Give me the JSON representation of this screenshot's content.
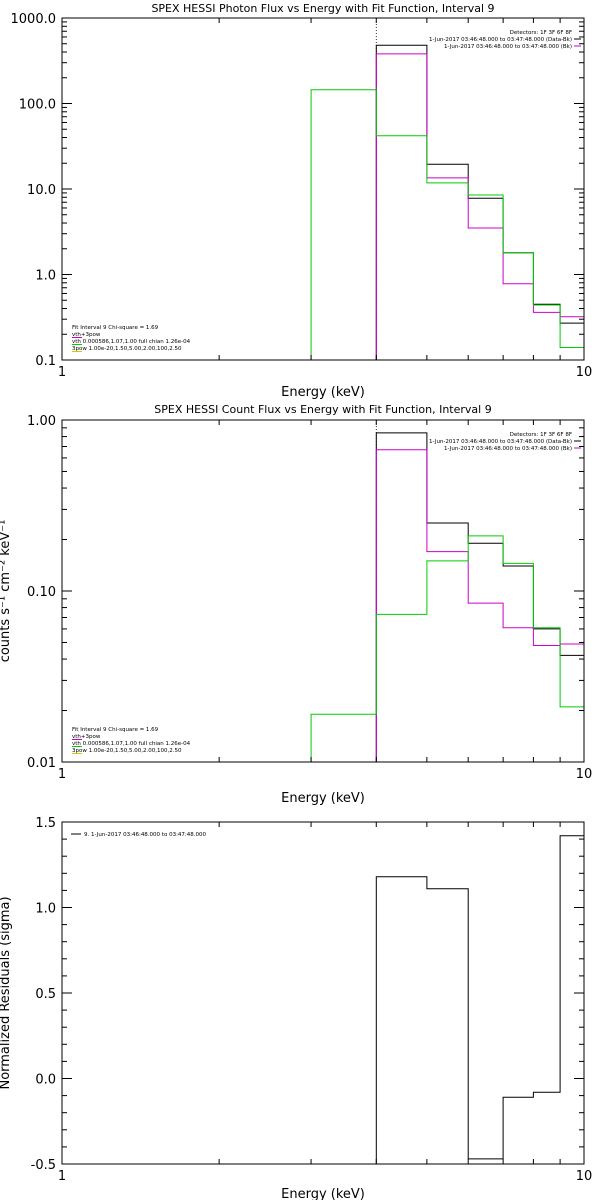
{
  "chart_data": [
    {
      "type": "line",
      "title": "SPEX HESSI Photon Flux vs Energy with Fit Function, Interval 9",
      "xlabel": "Energy (keV)",
      "ylabel": "",
      "xscale": "log",
      "yscale": "log",
      "xlim": [
        1,
        10
      ],
      "ylim": [
        0.1,
        1000
      ],
      "xticks": [
        {
          "v": 1,
          "label": "1"
        },
        {
          "v": 10,
          "label": "10"
        }
      ],
      "yticks": [
        {
          "v": 0.1,
          "label": "0.1"
        },
        {
          "v": 1,
          "label": "1.0"
        },
        {
          "v": 10,
          "label": "10.0"
        },
        {
          "v": 100,
          "label": "100.0"
        },
        {
          "v": 1000,
          "label": "1000.0"
        }
      ],
      "vline": 4,
      "info_lines": [
        "Detectors: 1F 3F 6F 8F",
        "1-Jun-2017 03:46:48.000 to 03:47:48.000 (Data-Bk)",
        "1-Jun-2017 03:46:48.000 to 03:47:48.000 (Bk)"
      ],
      "info_colors": [
        "",
        "#000000",
        "#cc00cc"
      ],
      "legend_lines": [
        "Fit Interval 9   Chi-square = 1.69",
        "vth+3pow",
        "vth 0.000586,1.07,1.00  full chian 1.26e-04",
        "3pow 1.00e-20,1.50,5.00,2.00,100,2.50"
      ],
      "legend_colors": [
        "",
        "#cc00cc",
        "#00cc00",
        "#cccc00"
      ],
      "series": [
        {
          "color": "#000000",
          "edges": [
            4,
            5,
            6,
            7,
            8,
            9,
            10
          ],
          "values": [
            480,
            19.5,
            7.8,
            1.8,
            0.45,
            0.27
          ]
        },
        {
          "color": "#cc00cc",
          "edges": [
            4,
            5,
            6,
            7,
            8,
            9,
            10
          ],
          "values": [
            380,
            13.5,
            3.5,
            0.78,
            0.36,
            0.32
          ]
        },
        {
          "color": "#00cc00",
          "edges": [
            3,
            4,
            5,
            6,
            7,
            8,
            9,
            10
          ],
          "values": [
            145,
            42,
            11.8,
            8.5,
            1.8,
            0.44,
            0.14
          ]
        }
      ]
    },
    {
      "type": "line",
      "title": "SPEX HESSI Count Flux vs Energy with Fit Function, Interval 9",
      "xlabel": "Energy (keV)",
      "ylabel": "counts s⁻¹ cm⁻² keV⁻¹",
      "xscale": "log",
      "yscale": "log",
      "xlim": [
        1,
        10
      ],
      "ylim": [
        0.01,
        1
      ],
      "xticks": [
        {
          "v": 1,
          "label": "1"
        },
        {
          "v": 10,
          "label": "10"
        }
      ],
      "yticks": [
        {
          "v": 0.01,
          "label": "0.01"
        },
        {
          "v": 0.1,
          "label": "0.10"
        },
        {
          "v": 1,
          "label": "1.00"
        }
      ],
      "vline": 4,
      "info_lines": [
        "Detectors: 1F 3F 6F 8F",
        "1-Jun-2017 03:46:48.000 to 03:47:48.000 (Data-Bk)",
        "1-Jun-2017 03:46:48.000 to 03:47:48.000 (Bk)"
      ],
      "info_colors": [
        "",
        "#000000",
        "#cc00cc"
      ],
      "legend_lines": [
        "Fit Interval 9   Chi-square = 1.69",
        "vth+3pow",
        "vth 0.000586,1.07,1.00  full chian 1.26e-04",
        "3pow 1.00e-20,1.50,5.00,2.00,100,2.50"
      ],
      "legend_colors": [
        "",
        "#cc00cc",
        "#00cc00",
        "#cccc00"
      ],
      "series": [
        {
          "color": "#000000",
          "edges": [
            4,
            5,
            6,
            7,
            8,
            9,
            10
          ],
          "values": [
            0.84,
            0.25,
            0.19,
            0.14,
            0.06,
            0.042
          ]
        },
        {
          "color": "#cc00cc",
          "edges": [
            4,
            5,
            6,
            7,
            8,
            9,
            10
          ],
          "values": [
            0.67,
            0.17,
            0.085,
            0.061,
            0.048,
            0.049
          ]
        },
        {
          "color": "#00cc00",
          "edges": [
            3,
            4,
            5,
            6,
            7,
            8,
            9,
            10
          ],
          "values": [
            0.019,
            0.073,
            0.15,
            0.21,
            0.145,
            0.061,
            0.021
          ]
        }
      ]
    },
    {
      "type": "line",
      "title": "",
      "xlabel": "Energy (keV)",
      "ylabel": "Normalized Residuals (sigma)",
      "xscale": "log",
      "yscale": "linear",
      "xlim": [
        1,
        10
      ],
      "ylim": [
        -0.5,
        1.5
      ],
      "xticks": [
        {
          "v": 1,
          "label": "1"
        },
        {
          "v": 10,
          "label": "10"
        }
      ],
      "yticks": [
        {
          "v": -0.5,
          "label": "-0.5"
        },
        {
          "v": 0,
          "label": "0.0"
        },
        {
          "v": 0.5,
          "label": "0.5"
        },
        {
          "v": 1,
          "label": "1.0"
        },
        {
          "v": 1.5,
          "label": "1.5"
        }
      ],
      "info_lines": [],
      "info_colors": [],
      "legend_lines": [
        "9.  1-Jun-2017 03:46:48.000 to 03:47:48.000"
      ],
      "legend_colors": [
        "#000000"
      ],
      "series": [
        {
          "color": "#000000",
          "edges": [
            4,
            5,
            6,
            7,
            8,
            9,
            10
          ],
          "values": [
            1.18,
            1.11,
            -0.47,
            -0.11,
            -0.08,
            1.42
          ]
        }
      ]
    }
  ]
}
